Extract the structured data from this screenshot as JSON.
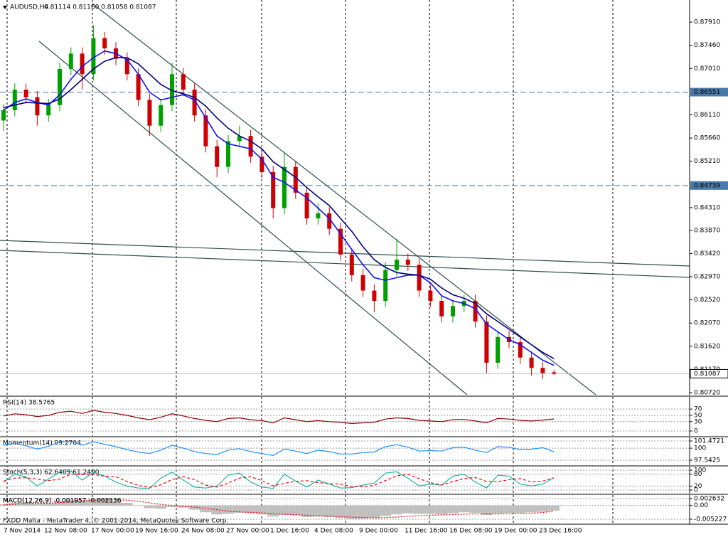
{
  "chart_data": [
    {
      "type": "candlestick",
      "title": "AUDUSD,H4",
      "subtitle": "0.81114 0.81160 0.81058 0.81087",
      "open": [
        0.86,
        0.862,
        0.866,
        0.8645,
        0.861,
        0.863,
        0.87,
        0.873,
        0.869,
        0.876,
        0.874,
        0.872,
        0.869,
        0.864,
        0.859,
        0.863,
        0.869,
        0.866,
        0.861,
        0.855,
        0.851,
        0.856,
        0.857,
        0.853,
        0.85,
        0.843,
        0.851,
        0.846,
        0.841,
        0.842,
        0.839,
        0.834,
        0.83,
        0.827,
        0.825,
        0.831,
        0.833,
        0.832,
        0.827,
        0.825,
        0.822,
        0.824,
        0.825,
        0.821,
        0.813,
        0.818,
        0.817,
        0.814,
        0.812,
        0.81114
      ],
      "high": [
        0.8632,
        0.8672,
        0.8672,
        0.8657,
        0.8642,
        0.8712,
        0.8742,
        0.8742,
        0.8785,
        0.8772,
        0.8752,
        0.8732,
        0.8702,
        0.8652,
        0.8642,
        0.8712,
        0.8702,
        0.8672,
        0.8622,
        0.8562,
        0.8572,
        0.859,
        0.8582,
        0.8542,
        0.8512,
        0.854,
        0.8522,
        0.8472,
        0.844,
        0.8432,
        0.8402,
        0.8352,
        0.8312,
        0.8282,
        0.8325,
        0.837,
        0.8342,
        0.8332,
        0.8282,
        0.8262,
        0.8252,
        0.8262,
        0.8262,
        0.8222,
        0.8192,
        0.8192,
        0.8182,
        0.8152,
        0.8132,
        0.8116
      ],
      "low": [
        0.858,
        0.8608,
        0.8633,
        0.859,
        0.8598,
        0.8618,
        0.8688,
        0.866,
        0.8678,
        0.8728,
        0.8708,
        0.8678,
        0.8628,
        0.857,
        0.8578,
        0.8618,
        0.8648,
        0.8598,
        0.8538,
        0.849,
        0.8498,
        0.8548,
        0.8518,
        0.8488,
        0.841,
        0.8418,
        0.8448,
        0.8398,
        0.8398,
        0.8378,
        0.8328,
        0.8288,
        0.8258,
        0.8228,
        0.8238,
        0.8298,
        0.8308,
        0.8258,
        0.8238,
        0.8208,
        0.8208,
        0.8228,
        0.8198,
        0.811,
        0.8118,
        0.8158,
        0.8128,
        0.8105,
        0.8098,
        0.81058
      ],
      "close": [
        0.862,
        0.866,
        0.8645,
        0.861,
        0.863,
        0.87,
        0.873,
        0.869,
        0.876,
        0.874,
        0.872,
        0.869,
        0.864,
        0.859,
        0.863,
        0.869,
        0.866,
        0.861,
        0.855,
        0.851,
        0.856,
        0.857,
        0.853,
        0.85,
        0.843,
        0.851,
        0.846,
        0.841,
        0.842,
        0.839,
        0.834,
        0.83,
        0.827,
        0.825,
        0.831,
        0.833,
        0.832,
        0.827,
        0.825,
        0.822,
        0.824,
        0.825,
        0.821,
        0.813,
        0.818,
        0.817,
        0.814,
        0.812,
        0.811,
        0.81087
      ],
      "up_color": "#00a000",
      "down_color": "#d00000",
      "series": [
        {
          "color": "#1010ff",
          "values": [
            0.862,
            0.8635,
            0.8642,
            0.8635,
            0.863,
            0.865,
            0.868,
            0.8705,
            0.8722,
            0.8735,
            0.873,
            0.8718,
            0.869,
            0.8655,
            0.864,
            0.8645,
            0.865,
            0.864,
            0.8605,
            0.857,
            0.8555,
            0.855,
            0.8545,
            0.8525,
            0.849,
            0.848,
            0.8465,
            0.845,
            0.843,
            0.841,
            0.838,
            0.835,
            0.832,
            0.8295,
            0.829,
            0.8295,
            0.83,
            0.83,
            0.8285,
            0.826,
            0.825,
            0.8245,
            0.8235,
            0.8205,
            0.819,
            0.8175,
            0.8165,
            0.815,
            0.8135,
            0.8125
          ]
        },
        {
          "color": "#000080",
          "values": [
            0.8625,
            0.863,
            0.8635,
            0.8634,
            0.8633,
            0.8642,
            0.866,
            0.868,
            0.87,
            0.8715,
            0.8722,
            0.8722,
            0.871,
            0.869,
            0.867,
            0.8658,
            0.8652,
            0.8645,
            0.8628,
            0.8605,
            0.8585,
            0.857,
            0.856,
            0.8545,
            0.852,
            0.8505,
            0.849,
            0.847,
            0.8452,
            0.8435,
            0.841,
            0.8385,
            0.8355,
            0.833,
            0.8315,
            0.8305,
            0.8302,
            0.83,
            0.8292,
            0.8275,
            0.8262,
            0.8255,
            0.8245,
            0.8225,
            0.821,
            0.8195,
            0.818,
            0.8165,
            0.815,
            0.8138
          ]
        }
      ],
      "levels": [
        0.86551,
        0.84739
      ],
      "level_color": "#4a78a8",
      "last_price": 0.81087,
      "ylim": [
        0.80665,
        0.88339
      ],
      "yticks": [
        {
          "value": 0.8791,
          "label": "0.87910"
        },
        {
          "value": 0.8746,
          "label": "0.87460"
        },
        {
          "value": 0.8701,
          "label": "0.87010"
        },
        {
          "value": 0.8611,
          "label": "0.86110"
        },
        {
          "value": 0.8566,
          "label": "0.85660"
        },
        {
          "value": 0.8521,
          "label": "0.85210"
        },
        {
          "value": 0.8431,
          "label": "0.84310"
        },
        {
          "value": 0.8387,
          "label": "0.83870"
        },
        {
          "value": 0.8342,
          "label": "0.83420"
        },
        {
          "value": 0.8297,
          "label": "0.82970"
        },
        {
          "value": 0.8252,
          "label": "0.82520"
        },
        {
          "value": 0.8207,
          "label": "0.82070"
        },
        {
          "value": 0.8162,
          "label": "0.81620"
        },
        {
          "value": 0.8117,
          "label": "0.81170"
        },
        {
          "value": 0.8072,
          "label": "0.80720"
        }
      ],
      "time_labels": [
        "7 Nov 2014",
        "12 Nov 08:00",
        "17 Nov 00:00",
        "19 Nov 16:00",
        "24 Nov 08:00",
        "27 Nov 00:00",
        "1 Dec 16:00",
        "4 Dec 08:00",
        "9 Dec 00:00",
        "11 Dec 16:00",
        "16 Dec 08:00",
        "19 Dec 00:00",
        "23 Dec 16:00"
      ]
    },
    {
      "type": "line",
      "title": "RSI(14) 38.5765",
      "ylim": [
        -16,
        109
      ],
      "yticks": [
        0,
        30,
        50,
        70
      ],
      "series": [
        {
          "color": "#8b0000",
          "values": [
            48,
            55,
            52,
            46,
            50,
            60,
            63,
            56,
            66,
            60,
            56,
            50,
            42,
            36,
            44,
            55,
            48,
            40,
            34,
            30,
            40,
            42,
            36,
            33,
            26,
            42,
            36,
            30,
            33,
            30,
            28,
            24,
            26,
            28,
            38,
            42,
            40,
            34,
            32,
            30,
            36,
            37,
            32,
            26,
            40,
            38,
            34,
            32,
            35,
            38.5765
          ]
        }
      ]
    },
    {
      "type": "line",
      "title": "Momentum(14) 99.2704",
      "ylim": [
        96.52,
        102.2
      ],
      "yticks": [
        97.5425,
        100,
        101.4721
      ],
      "series": [
        {
          "color": "#1e90ff",
          "values": [
            100.6,
            101.0,
            100.5,
            99.8,
            100.4,
            101.3,
            101.4,
            100.6,
            101.3,
            100.8,
            100.3,
            99.7,
            99.2,
            98.9,
            99.6,
            100.6,
            100.0,
            99.3,
            98.9,
            98.7,
            99.6,
            99.9,
            99.3,
            98.9,
            98.5,
            99.8,
            99.4,
            98.9,
            99.6,
            99.3,
            98.8,
            98.8,
            99.1,
            99.2,
            100.3,
            100.7,
            100.2,
            99.4,
            99.5,
            99.4,
            100.1,
            100.2,
            99.6,
            99.1,
            100.3,
            100.2,
            99.7,
            99.8,
            100.1,
            99.2704
          ]
        }
      ]
    },
    {
      "type": "line",
      "title": "Stoch(5,3,3) 62.6409 61.2490",
      "ylim": [
        -18,
        118
      ],
      "yticks": [
        0,
        20,
        80,
        100
      ],
      "series": [
        {
          "color": "#20b2aa",
          "values": [
            40,
            80,
            65,
            20,
            55,
            90,
            95,
            50,
            90,
            70,
            40,
            20,
            10,
            8,
            60,
            90,
            50,
            15,
            10,
            20,
            75,
            85,
            40,
            15,
            8,
            80,
            45,
            15,
            50,
            30,
            10,
            12,
            25,
            35,
            85,
            92,
            60,
            20,
            30,
            25,
            70,
            80,
            40,
            10,
            75,
            70,
            30,
            20,
            30,
            62.6409
          ]
        },
        {
          "color": "#ff0000",
          "style": "dashed",
          "values": [
            45,
            60,
            62,
            55,
            47,
            55,
            80,
            78,
            78,
            70,
            67,
            43,
            23,
            13,
            26,
            53,
            67,
            52,
            25,
            15,
            35,
            60,
            67,
            47,
            21,
            34,
            44,
            47,
            37,
            32,
            30,
            17,
            16,
            24,
            48,
            71,
            79,
            57,
            37,
            25,
            42,
            58,
            63,
            43,
            42,
            52,
            58,
            40,
            45,
            61.249
          ]
        }
      ]
    },
    {
      "type": "bar",
      "title": "MACD(12,26,9) -0.001957 -0.002136",
      "ylim": [
        -0.00685,
        0.00399
      ],
      "yticks": [
        -0.005227,
        {
          "value": 0,
          "label": "0.00"
        },
        0.002632
      ],
      "color": "#c0c0c0",
      "values": [
        0.0005,
        0.001,
        0.0012,
        0.0008,
        0.0009,
        0.0016,
        0.0022,
        0.002,
        0.0026,
        0.0024,
        0.0018,
        0.001,
        0.0,
        -0.001,
        -0.0012,
        -0.0006,
        -0.0008,
        -0.0016,
        -0.0026,
        -0.0034,
        -0.0032,
        -0.0028,
        -0.003,
        -0.0034,
        -0.0042,
        -0.0036,
        -0.0038,
        -0.0044,
        -0.0042,
        -0.0044,
        -0.0048,
        -0.0052,
        -0.005,
        -0.0048,
        -0.004,
        -0.0034,
        -0.003,
        -0.0032,
        -0.0032,
        -0.0034,
        -0.003,
        -0.0026,
        -0.0028,
        -0.0036,
        -0.003,
        -0.0028,
        -0.0028,
        -0.0026,
        -0.0024,
        -0.001957
      ],
      "series": [
        {
          "color": "#ff0000",
          "style": "dotted",
          "values": [
            0.0002,
            0.0005,
            0.0008,
            0.0009,
            0.0009,
            0.0011,
            0.0014,
            0.0017,
            0.002,
            0.0022,
            0.0022,
            0.002,
            0.0016,
            0.001,
            0.0004,
            0.0,
            -0.0003,
            -0.0006,
            -0.0011,
            -0.0016,
            -0.0021,
            -0.0024,
            -0.0026,
            -0.0028,
            -0.0031,
            -0.0033,
            -0.0035,
            -0.0037,
            -0.0039,
            -0.004,
            -0.0042,
            -0.0044,
            -0.0046,
            -0.0047,
            -0.0046,
            -0.0044,
            -0.0041,
            -0.0039,
            -0.0037,
            -0.0036,
            -0.0035,
            -0.0033,
            -0.0032,
            -0.0032,
            -0.0032,
            -0.0031,
            -0.003,
            -0.0029,
            -0.0027,
            -0.002136
          ]
        }
      ]
    }
  ],
  "footer": "FXDD Malta - MetaTrader 4, © 2001-2014, MetaQuotes Software Corp."
}
